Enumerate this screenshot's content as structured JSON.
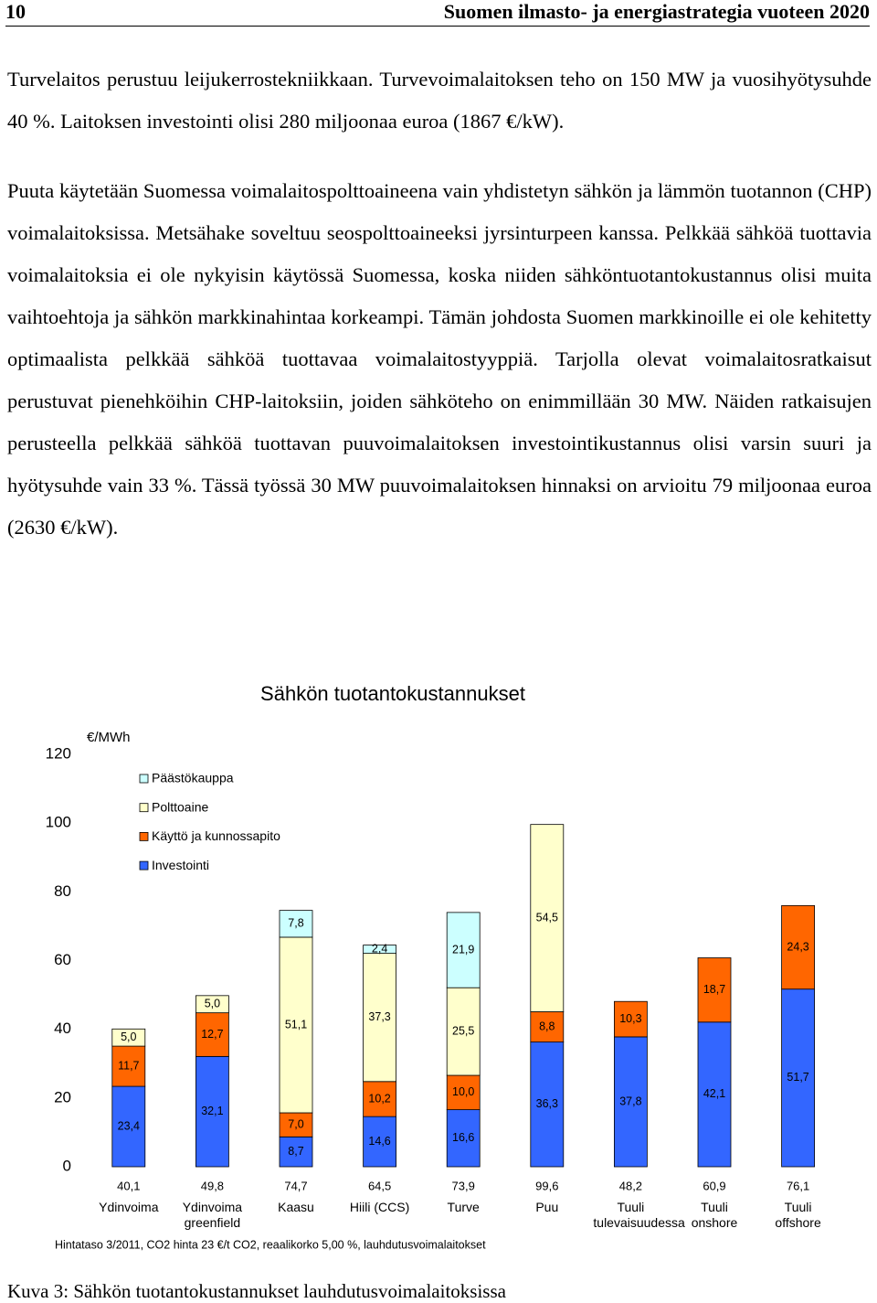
{
  "header": {
    "page_number": "10",
    "title": "Suomen ilmasto- ja energiastrategia vuoteen 2020"
  },
  "paragraphs": [
    "Turvelaitos perustuu leijukerrostekniikkaan. Turvevoimalaitoksen teho on 150 MW ja vuosihyötysuhde 40 %. Laitoksen investointi olisi 280 miljoonaa euroa (1867 €/kW).",
    "Puuta käytetään Suomessa voimalaitospolttoaineena vain yhdistetyn sähkön ja lämmön tuotannon (CHP) voimalaitoksissa. Metsähake soveltuu seospolttoaineeksi jyrsinturpeen kanssa. Pelkkää sähköä tuottavia voimalaitoksia ei ole nykyisin käytössä Suomessa, koska niiden sähköntuotantokustannus olisi muita vaihtoehtoja ja sähkön markkinahintaa korkeampi. Tämän johdosta Suomen markkinoille ei ole kehitetty optimaalista pelkkää sähköä tuottavaa voimalaitostyyppiä. Tarjolla olevat voimalaitosratkaisut perustuvat pienehköihin CHP-laitoksiin, joiden sähköteho on enimmillään 30 MW. Näiden ratkaisujen perusteella pelkkää sähköä tuottavan puuvoimalaitoksen investointikustannus olisi varsin suuri ja hyötysuhde vain 33 %. Tässä työssä 30 MW puuvoimalaitoksen hinnaksi on arvioitu 79 miljoonaa euroa (2630 €/kW)."
  ],
  "chart_data": {
    "type": "stacked_bar",
    "title": "Sähkön tuotantokustannukset",
    "y_label": "€/MWh",
    "categories": [
      "Ydinvoima",
      "Ydinvoima greenfield",
      "Kaasu",
      "Hiili (CCS)",
      "Turve",
      "Puu",
      "Tuuli tulevaisuudessa",
      "Tuuli onshore",
      "Tuuli offshore"
    ],
    "series": [
      {
        "name": "Investointi",
        "color": "#3366ff",
        "values": [
          23.4,
          32.1,
          8.7,
          14.6,
          16.6,
          36.3,
          37.8,
          42.1,
          51.7
        ],
        "value_labels": [
          "23,4",
          "32,1",
          "8,7",
          "14,6",
          "16,6",
          "36,3",
          "37,8",
          "42,1",
          "51,7"
        ]
      },
      {
        "name": "Käyttö ja kunnossapito",
        "color": "#ff6600",
        "values": [
          11.7,
          12.7,
          7.0,
          10.2,
          10.0,
          8.8,
          10.3,
          18.7,
          24.3
        ],
        "value_labels": [
          "11,7",
          "12,7",
          "7,0",
          "10,2",
          "10,0",
          "8,8",
          "10,3",
          "18,7",
          "24,3"
        ]
      },
      {
        "name": "Polttoaine",
        "color": "#ffffcc",
        "values": [
          5.0,
          5.0,
          51.1,
          37.3,
          25.5,
          54.5,
          null,
          null,
          null
        ],
        "value_labels": [
          "5,0",
          "5,0",
          "51,1",
          "37,3",
          "25,5",
          "54,5",
          null,
          null,
          null
        ]
      },
      {
        "name": "Päästökauppa",
        "color": "#ccffff",
        "values": [
          null,
          null,
          7.8,
          2.4,
          21.9,
          null,
          null,
          null,
          null
        ],
        "value_labels": [
          null,
          null,
          "7,8",
          "2,4",
          "21,9",
          null,
          null,
          null,
          null
        ]
      }
    ],
    "totals": [
      40.1,
      49.8,
      74.7,
      64.5,
      73.9,
      99.6,
      48.2,
      60.9,
      76.1
    ],
    "total_labels": [
      "40,1",
      "49,8",
      "74,7",
      "64,5",
      "73,9",
      "99,6",
      "48,2",
      "60,9",
      "76,1"
    ],
    "ylim": [
      0,
      120
    ],
    "yticks": [
      0,
      20,
      40,
      60,
      80,
      100,
      120
    ],
    "note": "Hintataso 3/2011, CO2 hinta 23 €/t CO2, reaalikorko 5,00 %, lauhdutusvoimalaitokset"
  },
  "caption": "Kuva 3: Sähkön tuotantokustannukset lauhdutusvoimalaitoksissa"
}
